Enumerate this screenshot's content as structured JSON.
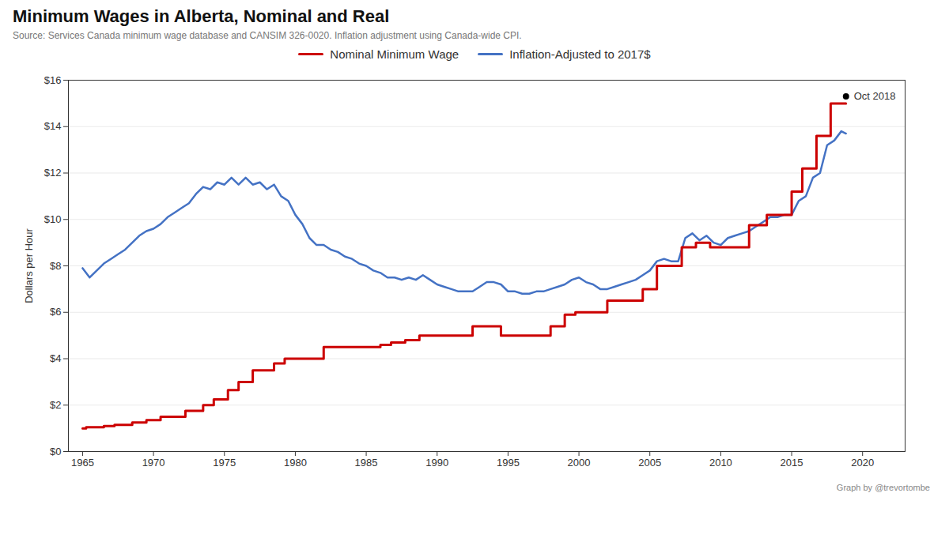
{
  "chart_data": {
    "type": "line",
    "title": "Minimum Wages in Alberta, Nominal and Real",
    "subtitle": "Source: Services Canada minimum wage database and CANSIM 326-0020. Inflation adjustment using Canada-wide CPI.",
    "ylabel": "Dollars per Hour",
    "caption": "Graph by @trevortombe",
    "xlim": [
      1964,
      2023
    ],
    "ylim": [
      0,
      16
    ],
    "xticks": [
      1965,
      1970,
      1975,
      1980,
      1985,
      1990,
      1995,
      2000,
      2005,
      2010,
      2015,
      2020
    ],
    "yticks": [
      {
        "value": 0,
        "label": "$0"
      },
      {
        "value": 2,
        "label": "$2"
      },
      {
        "value": 4,
        "label": "$4"
      },
      {
        "value": 6,
        "label": "$6"
      },
      {
        "value": 8,
        "label": "$8"
      },
      {
        "value": 10,
        "label": "$10"
      },
      {
        "value": 12,
        "label": "$12"
      },
      {
        "value": 14,
        "label": "$14"
      },
      {
        "value": 16,
        "label": "$16"
      }
    ],
    "grid": "y",
    "legend": "top",
    "annotations": [
      {
        "text": "Oct 2018",
        "x": 2018.83,
        "y": 15.3
      }
    ],
    "series": [
      {
        "name": "Nominal Minimum Wage",
        "color": "#CC0000",
        "x": [
          1965.0,
          1965.25,
          1965.25,
          1966.5,
          1966.5,
          1967.25,
          1967.25,
          1968.5,
          1968.5,
          1969.5,
          1969.5,
          1970.5,
          1970.5,
          1972.25,
          1972.25,
          1973.5,
          1973.5,
          1974.25,
          1974.25,
          1975.25,
          1975.25,
          1976.0,
          1976.0,
          1977.0,
          1977.0,
          1978.5,
          1978.5,
          1979.25,
          1979.25,
          1982.0,
          1982.0,
          1986.0,
          1986.0,
          1986.75,
          1986.75,
          1987.75,
          1987.75,
          1988.75,
          1988.75,
          1992.5,
          1992.5,
          1994.5,
          1994.5,
          1998.0,
          1998.0,
          1999.0,
          1999.0,
          1999.75,
          1999.75,
          2002.0,
          2002.0,
          2004.5,
          2004.5,
          2005.5,
          2005.5,
          2007.25,
          2007.25,
          2008.25,
          2008.25,
          2009.25,
          2009.25,
          2012.0,
          2012.0,
          2013.25,
          2013.25,
          2014.25,
          2014.25,
          2015.0,
          2015.0,
          2015.75,
          2015.75,
          2016.75,
          2016.75,
          2017.75,
          2017.75,
          2018.83
        ],
        "values": [
          1.0,
          1.0,
          1.05,
          1.05,
          1.1,
          1.1,
          1.15,
          1.15,
          1.25,
          1.25,
          1.35,
          1.35,
          1.5,
          1.5,
          1.75,
          1.75,
          2.0,
          2.0,
          2.25,
          2.25,
          2.65,
          2.65,
          3.0,
          3.0,
          3.5,
          3.5,
          3.8,
          3.8,
          4.0,
          4.0,
          4.5,
          4.5,
          4.6,
          4.6,
          4.7,
          4.7,
          4.8,
          4.8,
          5.0,
          5.0,
          5.4,
          5.4,
          5.0,
          5.0,
          5.4,
          5.4,
          5.9,
          5.9,
          6.0,
          6.0,
          6.5,
          6.5,
          7.0,
          7.0,
          8.0,
          8.0,
          8.8,
          8.8,
          9.0,
          9.0,
          8.8,
          8.8,
          9.75,
          9.75,
          10.2,
          10.2,
          10.2,
          10.2,
          11.2,
          11.2,
          12.2,
          12.2,
          13.6,
          13.6,
          15.0,
          15.0
        ]
      },
      {
        "name": "Inflation-Adjusted to 2017$",
        "color": "#4472C4",
        "x": [
          1965.0,
          1965.5,
          1966.0,
          1966.5,
          1967.0,
          1967.5,
          1968.0,
          1968.5,
          1969.0,
          1969.5,
          1970.0,
          1970.5,
          1971.0,
          1971.5,
          1972.0,
          1972.5,
          1973.0,
          1973.5,
          1974.0,
          1974.5,
          1975.0,
          1975.5,
          1976.0,
          1976.5,
          1977.0,
          1977.5,
          1978.0,
          1978.5,
          1979.0,
          1979.5,
          1980.0,
          1980.5,
          1981.0,
          1981.5,
          1982.0,
          1982.5,
          1983.0,
          1983.5,
          1984.0,
          1984.5,
          1985.0,
          1985.5,
          1986.0,
          1986.5,
          1987.0,
          1987.5,
          1988.0,
          1988.5,
          1989.0,
          1989.5,
          1990.0,
          1990.5,
          1991.0,
          1991.5,
          1992.0,
          1992.5,
          1993.0,
          1993.5,
          1994.0,
          1994.5,
          1995.0,
          1995.5,
          1996.0,
          1996.5,
          1997.0,
          1997.5,
          1998.0,
          1998.5,
          1999.0,
          1999.5,
          2000.0,
          2000.5,
          2001.0,
          2001.5,
          2002.0,
          2002.5,
          2003.0,
          2003.5,
          2004.0,
          2004.5,
          2005.0,
          2005.5,
          2006.0,
          2006.5,
          2007.0,
          2007.5,
          2008.0,
          2008.5,
          2009.0,
          2009.5,
          2010.0,
          2010.5,
          2011.0,
          2011.5,
          2012.0,
          2012.5,
          2013.0,
          2013.5,
          2014.0,
          2014.5,
          2015.0,
          2015.5,
          2016.0,
          2016.5,
          2017.0,
          2017.5,
          2018.0,
          2018.5,
          2018.83
        ],
        "values": [
          7.9,
          7.5,
          7.8,
          8.1,
          8.3,
          8.5,
          8.7,
          9.0,
          9.3,
          9.5,
          9.6,
          9.8,
          10.1,
          10.3,
          10.5,
          10.7,
          11.1,
          11.4,
          11.3,
          11.6,
          11.5,
          11.8,
          11.5,
          11.8,
          11.5,
          11.6,
          11.3,
          11.5,
          11.0,
          10.8,
          10.2,
          9.8,
          9.2,
          8.9,
          8.9,
          8.7,
          8.6,
          8.4,
          8.3,
          8.1,
          8.0,
          7.8,
          7.7,
          7.5,
          7.5,
          7.4,
          7.5,
          7.4,
          7.6,
          7.4,
          7.2,
          7.1,
          7.0,
          6.9,
          6.9,
          6.9,
          7.1,
          7.3,
          7.3,
          7.2,
          6.9,
          6.9,
          6.8,
          6.8,
          6.9,
          6.9,
          7.0,
          7.1,
          7.2,
          7.4,
          7.5,
          7.3,
          7.2,
          7.0,
          7.0,
          7.1,
          7.2,
          7.3,
          7.4,
          7.6,
          7.8,
          8.2,
          8.3,
          8.2,
          8.2,
          9.2,
          9.4,
          9.1,
          9.3,
          9.0,
          8.9,
          9.2,
          9.3,
          9.4,
          9.5,
          9.7,
          9.9,
          10.1,
          10.1,
          10.2,
          10.2,
          10.8,
          11.0,
          11.8,
          12.0,
          13.2,
          13.4,
          13.8,
          13.7
        ]
      }
    ]
  }
}
